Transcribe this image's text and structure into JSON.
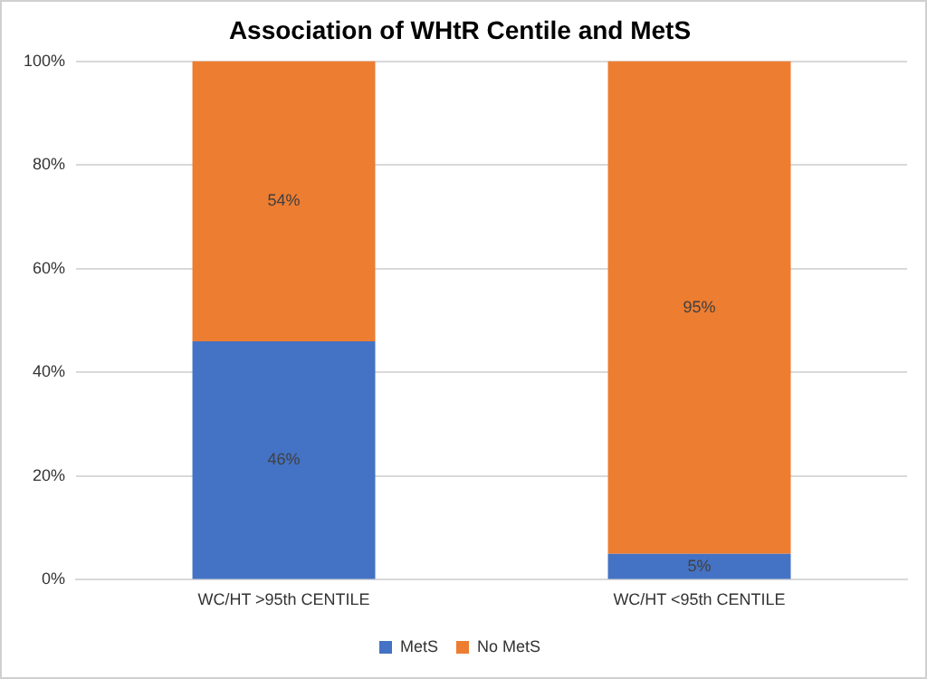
{
  "chart_data": {
    "type": "bar",
    "title": "Association of WHtR Centile and MetS",
    "stacked": true,
    "categories": [
      "WC/HT >95th CENTILE",
      "WC/HT <95th CENTILE"
    ],
    "series": [
      {
        "name": "MetS",
        "color": "#4472c4",
        "values": [
          46,
          5
        ],
        "value_labels": [
          "46%",
          "5%"
        ]
      },
      {
        "name": "No MetS",
        "color": "#ed7d31",
        "values": [
          54,
          95
        ],
        "value_labels": [
          "54%",
          "95%"
        ]
      }
    ],
    "ylim": [
      0,
      100
    ],
    "yticks": [
      {
        "value": 0,
        "label": "0%"
      },
      {
        "value": 20,
        "label": "20%"
      },
      {
        "value": 40,
        "label": "40%"
      },
      {
        "value": 60,
        "label": "60%"
      },
      {
        "value": 80,
        "label": "80%"
      },
      {
        "value": 100,
        "label": "100%"
      }
    ],
    "grid": "y",
    "legend": "bottom"
  }
}
